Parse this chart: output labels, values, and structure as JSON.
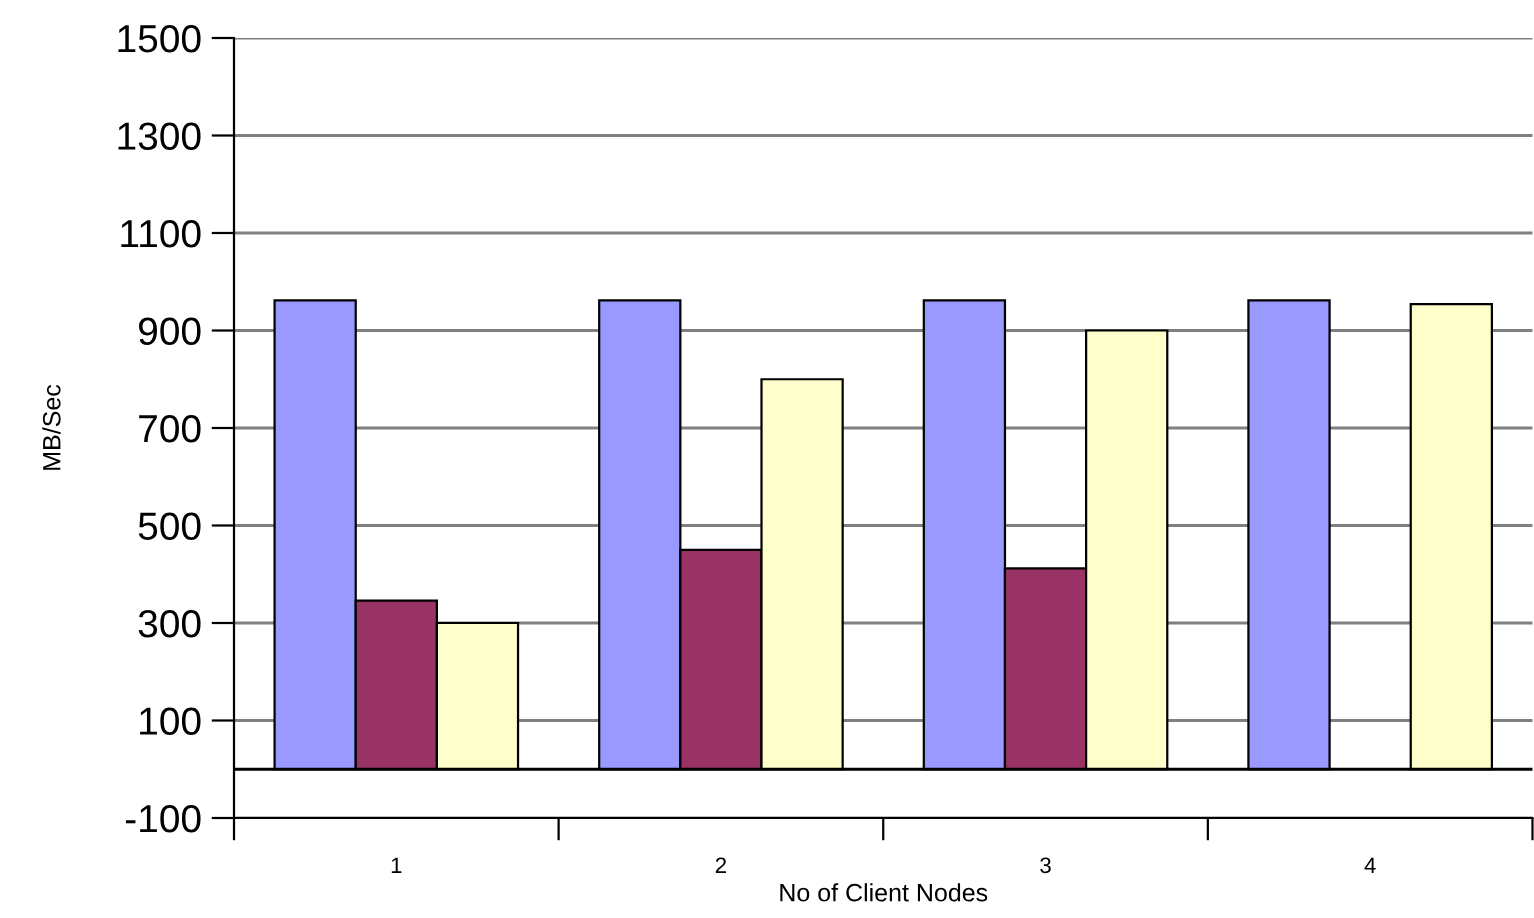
{
  "chart_data": {
    "type": "bar",
    "xlabel": "No of Client Nodes",
    "ylabel": "MB/Sec",
    "categories": [
      "1",
      "2",
      "3",
      "4"
    ],
    "series": [
      {
        "color": "#9999ff",
        "values": [
          962,
          962,
          962,
          962
        ]
      },
      {
        "color": "#993366",
        "values": [
          346,
          450,
          412,
          null
        ]
      },
      {
        "color": "#ffffcc",
        "values": [
          300,
          800,
          900,
          954
        ]
      }
    ],
    "ylim": [
      -100,
      1500
    ],
    "yticks": [
      -100,
      100,
      300,
      500,
      700,
      900,
      1100,
      1300,
      1500
    ],
    "grid": "y",
    "ref_lines": [
      {
        "axis": "y",
        "value": 0,
        "color": "#000000"
      }
    ]
  }
}
